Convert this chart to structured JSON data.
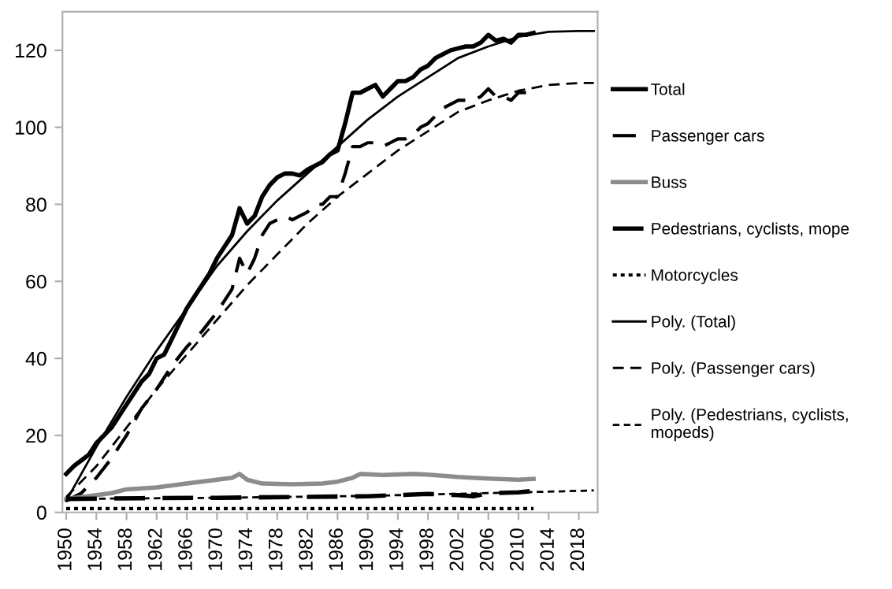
{
  "chart_data": {
    "type": "line",
    "legend": "right",
    "grid": false,
    "xlim": [
      1949.5,
      2020.5
    ],
    "ylim": [
      0,
      130
    ],
    "xticks": [
      1950,
      1954,
      1958,
      1962,
      1966,
      1970,
      1974,
      1978,
      1982,
      1986,
      1990,
      1994,
      1998,
      2002,
      2006,
      2010,
      2014,
      2018
    ],
    "yticks": [
      0,
      20,
      40,
      60,
      80,
      100,
      120
    ],
    "series": [
      {
        "name": "Total",
        "color": "#000000",
        "line_style": "solid",
        "x": [
          1950,
          1951,
          1952,
          1953,
          1954,
          1955,
          1956,
          1957,
          1958,
          1959,
          1960,
          1961,
          1962,
          1963,
          1964,
          1965,
          1966,
          1967,
          1968,
          1969,
          1970,
          1971,
          1972,
          1973,
          1974,
          1975,
          1976,
          1977,
          1978,
          1979,
          1980,
          1981,
          1982,
          1983,
          1984,
          1985,
          1986,
          1987,
          1988,
          1989,
          1990,
          1991,
          1992,
          1993,
          1994,
          1995,
          1996,
          1997,
          1998,
          1999,
          2000,
          2001,
          2002,
          2003,
          2004,
          2005,
          2006,
          2007,
          2008,
          2009,
          2010,
          2011,
          2012
        ],
        "values": [
          10,
          12,
          13.5,
          15,
          18,
          20,
          22,
          25,
          28,
          31,
          34,
          36,
          40,
          41,
          45,
          49,
          53,
          56,
          59,
          62,
          66,
          69,
          72,
          79,
          75,
          77,
          82,
          85,
          87,
          88,
          88,
          87.5,
          89,
          90,
          91,
          93,
          94,
          101,
          109,
          109,
          110,
          111,
          108,
          110,
          112,
          112,
          113,
          115,
          116,
          118,
          119,
          120,
          120.5,
          121,
          121,
          122,
          124,
          122.5,
          123,
          122,
          124,
          124,
          124.5
        ]
      },
      {
        "name": "Passenger cars",
        "color": "#000000",
        "line_style": "dashed",
        "x": [
          1950,
          1952,
          1954,
          1956,
          1958,
          1960,
          1962,
          1964,
          1966,
          1968,
          1970,
          1971,
          1972,
          1973,
          1974,
          1975,
          1976,
          1977,
          1978,
          1979,
          1980,
          1981,
          1982,
          1983,
          1984,
          1985,
          1986,
          1987,
          1988,
          1989,
          1990,
          1991,
          1992,
          1993,
          1994,
          1995,
          1996,
          1997,
          1998,
          1999,
          2000,
          2001,
          2002,
          2003,
          2004,
          2005,
          2006,
          2007,
          2008,
          2009,
          2010,
          2011,
          2012
        ],
        "values": [
          3,
          5,
          9,
          14,
          20,
          27,
          32,
          38,
          43,
          47,
          52,
          55,
          58,
          66,
          62,
          66,
          72,
          75,
          76,
          77,
          76,
          77,
          78,
          80,
          80,
          82,
          82,
          88,
          95,
          95,
          96,
          96,
          95,
          96,
          97,
          97,
          98,
          100,
          101,
          103,
          105,
          106,
          107,
          107,
          107,
          108,
          110,
          108,
          108,
          107,
          109,
          109,
          110
        ]
      },
      {
        "name": "Buss",
        "color": "#8c8c8c",
        "line_style": "solid",
        "x": [
          1950,
          1954,
          1956,
          1958,
          1962,
          1966,
          1970,
          1972,
          1973,
          1974,
          1976,
          1980,
          1984,
          1986,
          1988,
          1989,
          1992,
          1996,
          1998,
          2002,
          2006,
          2010,
          2012
        ],
        "values": [
          3.5,
          4.5,
          5,
          6,
          6.5,
          7.5,
          8.5,
          9,
          10,
          8.5,
          7.5,
          7.3,
          7.5,
          8,
          9,
          10,
          9.7,
          10,
          9.8,
          9.2,
          8.8,
          8.5,
          8.7
        ]
      },
      {
        "name": "Pedestrians, cyclists, mope",
        "color": "#000000",
        "line_style": "dashed",
        "x": [
          1950,
          1960,
          1970,
          1980,
          1990,
          1994,
          1998,
          2002,
          2004,
          2006,
          2010,
          2012
        ],
        "values": [
          3.5,
          3.7,
          3.8,
          4,
          4.2,
          4.5,
          4.8,
          4.5,
          4.2,
          5,
          5.2,
          5.6
        ]
      },
      {
        "name": "Motorcycles",
        "color": "#000000",
        "line_style": "dotted",
        "x": [
          1950,
          2012
        ],
        "values": [
          1,
          1
        ]
      },
      {
        "name": "Poly. (Total)",
        "color": "#000000",
        "line_style": "solid",
        "x": [
          1950,
          1954,
          1958,
          1962,
          1966,
          1970,
          1974,
          1978,
          1982,
          1986,
          1990,
          1994,
          1998,
          2002,
          2006,
          2010,
          2014,
          2018,
          2020
        ],
        "values": [
          3,
          17,
          30,
          42,
          53,
          64,
          73,
          81,
          88,
          95,
          102,
          108,
          113,
          118,
          121,
          123.5,
          124.8,
          125,
          125
        ]
      },
      {
        "name": "Poly. (Passenger cars)",
        "color": "#000000",
        "line_style": "dashed",
        "x": [
          1950,
          1954,
          1958,
          1962,
          1966,
          1970,
          1974,
          1978,
          1982,
          1986,
          1990,
          1994,
          1998,
          2002,
          2006,
          2010,
          2014,
          2018,
          2020
        ],
        "values": [
          4,
          12,
          22,
          32,
          41,
          50,
          59,
          67,
          75,
          82,
          88,
          94,
          99,
          104,
          107,
          109.5,
          111,
          111.5,
          111.5
        ]
      },
      {
        "name": "Poly. (Pedestrians, cyclists,\nmopeds)",
        "color": "#000000",
        "line_style": "dotted",
        "x": [
          1950,
          1970,
          1990,
          2010,
          2020
        ],
        "values": [
          3.5,
          3.8,
          4.3,
          5.2,
          5.7
        ]
      }
    ]
  }
}
